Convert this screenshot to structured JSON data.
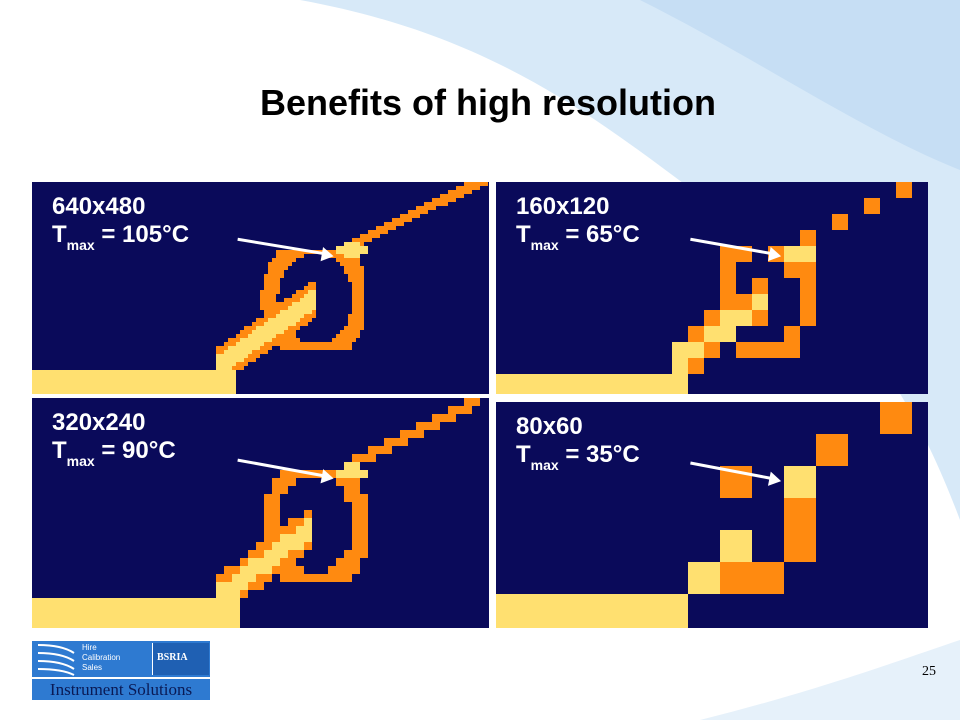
{
  "slide": {
    "title": "Benefits of high resolution",
    "page_number": "25"
  },
  "panels": [
    {
      "resolution": "640x480",
      "t_label": "T",
      "t_sub": "max",
      "t_value": "= 105°C",
      "pixel_size": 2
    },
    {
      "resolution": "160x120",
      "t_label": "T",
      "t_sub": "max",
      "t_value": "= 65°C",
      "pixel_size": 8
    },
    {
      "resolution": "320x240",
      "t_label": "T",
      "t_sub": "max",
      "t_value": "= 90°C",
      "pixel_size": 4
    },
    {
      "resolution": "80x60",
      "t_label": "T",
      "t_sub": "max",
      "t_value": "= 35°C",
      "pixel_size": 16
    }
  ],
  "logo": {
    "lines": [
      "Hire",
      "Calibration",
      "Sales"
    ],
    "badge": "BSRIA",
    "name": "Instrument  Solutions"
  },
  "colors": {
    "panel_bg": "#0a0a5a",
    "hot": "#ffe070",
    "warm": "#ff8a10",
    "cool": "#b0402a",
    "background_curve": "#d7e9f8"
  }
}
